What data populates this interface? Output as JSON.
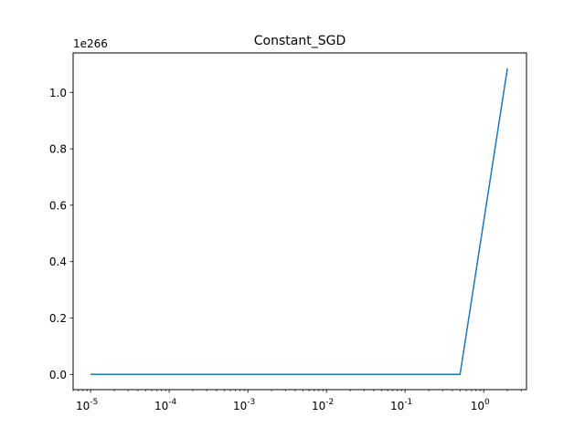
{
  "chart_data": {
    "type": "line",
    "title": "Constant_SGD",
    "xlabel": "",
    "ylabel": "",
    "x_scale": "log",
    "y_offset_label": "1e266",
    "xlim": [
      6e-06,
      3.5
    ],
    "ylim": [
      -0.054,
      1.14
    ],
    "x_tick_values": [
      1e-05,
      0.0001,
      0.001,
      0.01,
      0.1,
      1
    ],
    "x_tick_labels": [
      "10^-5",
      "10^-4",
      "10^-3",
      "10^-2",
      "10^-1",
      "10^0"
    ],
    "y_ticks": [
      0.0,
      0.2,
      0.4,
      0.6,
      0.8,
      1.0
    ],
    "y_tick_labels": [
      "0.0",
      "0.2",
      "0.4",
      "0.6",
      "0.8",
      "1.0"
    ],
    "series": [
      {
        "color": "#1f77b4",
        "x": [
          1e-05,
          0.0001,
          0.001,
          0.01,
          0.1,
          0.5,
          2
        ],
        "y": [
          0,
          0,
          0,
          0,
          0,
          0,
          1.085
        ]
      }
    ],
    "grid": false
  }
}
